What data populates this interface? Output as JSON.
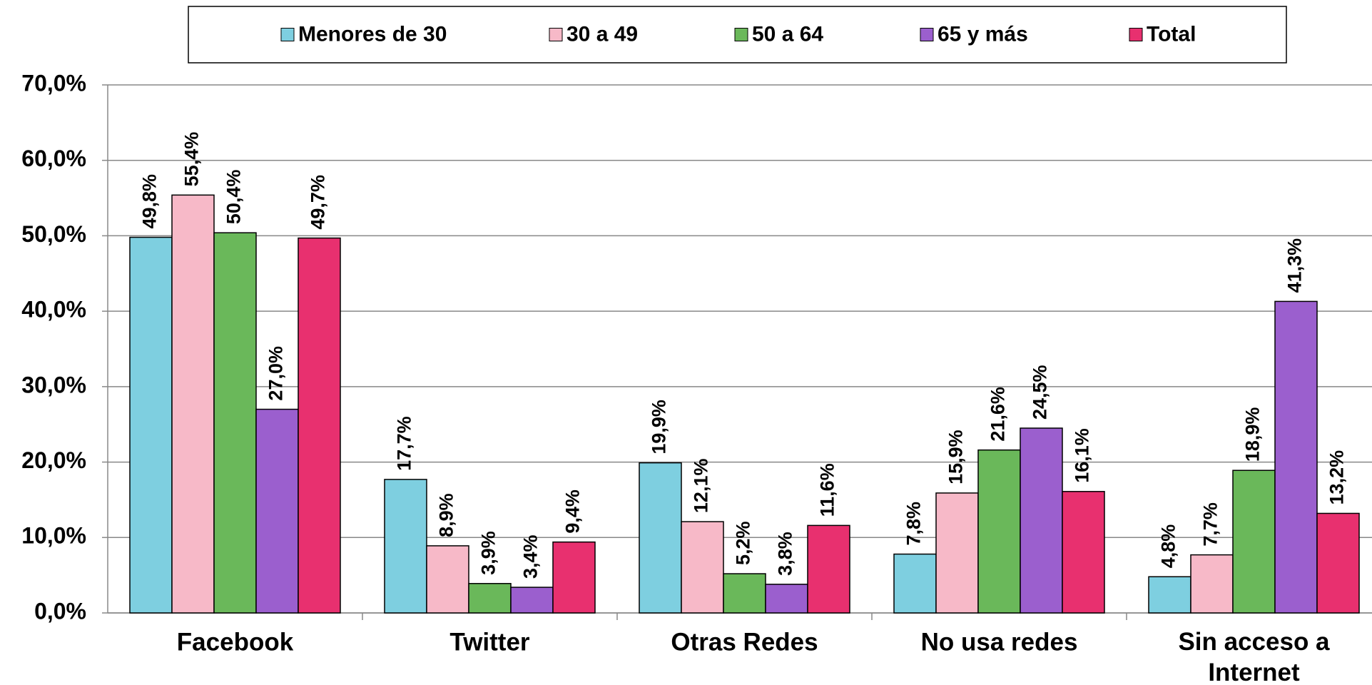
{
  "chart_data": {
    "type": "bar",
    "categories": [
      "Facebook",
      "Twitter",
      "Otras Redes",
      "No usa redes",
      "Sin acceso a Internet"
    ],
    "series": [
      {
        "name": "Menores de 30",
        "color": "#7ecfe0",
        "values": [
          49.8,
          17.7,
          19.9,
          7.8,
          4.8
        ],
        "value_labels": [
          "49,8%",
          "17,7%",
          "19,9%",
          "7,8%",
          "4,8%"
        ]
      },
      {
        "name": "30 a 49",
        "color": "#f7b9c8",
        "values": [
          55.4,
          8.9,
          12.1,
          15.9,
          7.7
        ],
        "value_labels": [
          "55,4%",
          "8,9%",
          "12,1%",
          "15,9%",
          "7,7%"
        ]
      },
      {
        "name": "50 a 64",
        "color": "#6ab85a",
        "values": [
          50.4,
          3.9,
          5.2,
          21.6,
          18.9
        ],
        "value_labels": [
          "50,4%",
          "3,9%",
          "5,2%",
          "21,6%",
          "18,9%"
        ]
      },
      {
        "name": "65 y más",
        "color": "#9b5fce",
        "values": [
          27.0,
          3.4,
          3.8,
          24.5,
          41.3
        ],
        "value_labels": [
          "27,0%",
          "3,4%",
          "3,8%",
          "24,5%",
          "41,3%"
        ]
      },
      {
        "name": "Total",
        "color": "#e8306f",
        "values": [
          49.7,
          9.4,
          11.6,
          16.1,
          13.2
        ],
        "value_labels": [
          "49,7%",
          "9,4%",
          "11,6%",
          "16,1%",
          "13,2%"
        ]
      }
    ],
    "ylim": [
      0,
      70
    ],
    "yticks": [
      {
        "value": 0,
        "label": "0,0%"
      },
      {
        "value": 10,
        "label": "10,0%"
      },
      {
        "value": 20,
        "label": "20,0%"
      },
      {
        "value": 30,
        "label": "30,0%"
      },
      {
        "value": 40,
        "label": "40,0%"
      },
      {
        "value": 50,
        "label": "50,0%"
      },
      {
        "value": 60,
        "label": "60,0%"
      },
      {
        "value": 70,
        "label": "70,0%"
      }
    ],
    "grid": true,
    "legend": "top"
  }
}
